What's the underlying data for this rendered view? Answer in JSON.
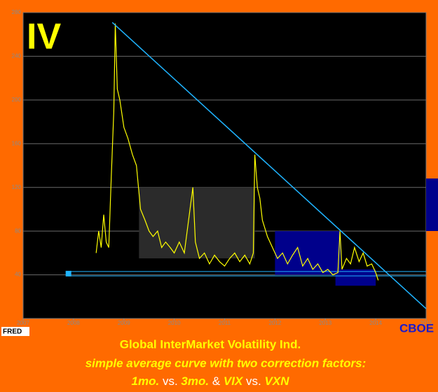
{
  "chart_data": {
    "type": "line",
    "badge": "IV",
    "source_logo": "FRED",
    "source": "CBOE",
    "title": "Global InterMarket Volatility Ind.",
    "subtitle": "simple average curve with two correction factors:",
    "caption_parts": [
      "1mo.",
      "vs.",
      "3mo.",
      "&",
      "VIX",
      "vs.",
      "VXN"
    ],
    "xlim": [
      2007,
      2015
    ],
    "xticks": [
      2007,
      2008,
      2009,
      2010,
      2011,
      2012,
      2013,
      2014,
      2015
    ],
    "ylim": [
      0,
      280
    ],
    "yticks": [
      40,
      80,
      120,
      160,
      200,
      240,
      280
    ],
    "grid": true,
    "series": [
      {
        "color": "#ffff00",
        "x": [
          2008.45,
          2008.5,
          2008.55,
          2008.6,
          2008.65,
          2008.7,
          2008.75,
          2008.8,
          2008.83,
          2008.87,
          2008.92,
          2009.0,
          2009.08,
          2009.17,
          2009.25,
          2009.33,
          2009.42,
          2009.5,
          2009.58,
          2009.67,
          2009.75,
          2009.83,
          2009.92,
          2010.0,
          2010.1,
          2010.2,
          2010.37,
          2010.42,
          2010.5,
          2010.6,
          2010.7,
          2010.8,
          2010.9,
          2011.0,
          2011.1,
          2011.2,
          2011.3,
          2011.4,
          2011.5,
          2011.57,
          2011.6,
          2011.65,
          2011.7,
          2011.75,
          2011.85,
          2011.95,
          2012.05,
          2012.15,
          2012.25,
          2012.35,
          2012.45,
          2012.55,
          2012.65,
          2012.75,
          2012.85,
          2012.95,
          2013.05,
          2013.15,
          2013.25,
          2013.29,
          2013.33,
          2013.42,
          2013.5,
          2013.58,
          2013.67,
          2013.75,
          2013.83,
          2013.92,
          2014.0,
          2014.05
        ],
        "values": [
          60,
          80,
          65,
          95,
          70,
          65,
          130,
          190,
          270,
          210,
          200,
          175,
          165,
          150,
          140,
          100,
          90,
          80,
          75,
          80,
          65,
          70,
          65,
          60,
          70,
          60,
          120,
          70,
          55,
          60,
          50,
          58,
          52,
          48,
          55,
          60,
          52,
          58,
          50,
          60,
          150,
          120,
          110,
          90,
          75,
          65,
          55,
          60,
          50,
          58,
          65,
          48,
          55,
          45,
          50,
          42,
          45,
          40,
          42,
          80,
          45,
          55,
          50,
          65,
          52,
          60,
          48,
          50,
          42,
          35
        ]
      }
    ],
    "trendline": {
      "color": "#1fb4ff",
      "x": [
        2008.77,
        2015
      ],
      "values": [
        271,
        9
      ]
    },
    "reference_lines": {
      "color": "#1fb4ff",
      "x": [
        2007.9,
        2015
      ],
      "values": [
        43,
        39
      ]
    },
    "bands": [
      {
        "color": "#2b2b2b",
        "x": [
          2009.3,
          2011.6
        ],
        "y": [
          55,
          120
        ]
      },
      {
        "color": "#00008b",
        "x": [
          2012.0,
          2013.3
        ],
        "y": [
          40,
          80
        ]
      },
      {
        "color": "#00008b",
        "x": [
          2013.2,
          2014.0
        ],
        "y": [
          30,
          45
        ]
      }
    ]
  }
}
